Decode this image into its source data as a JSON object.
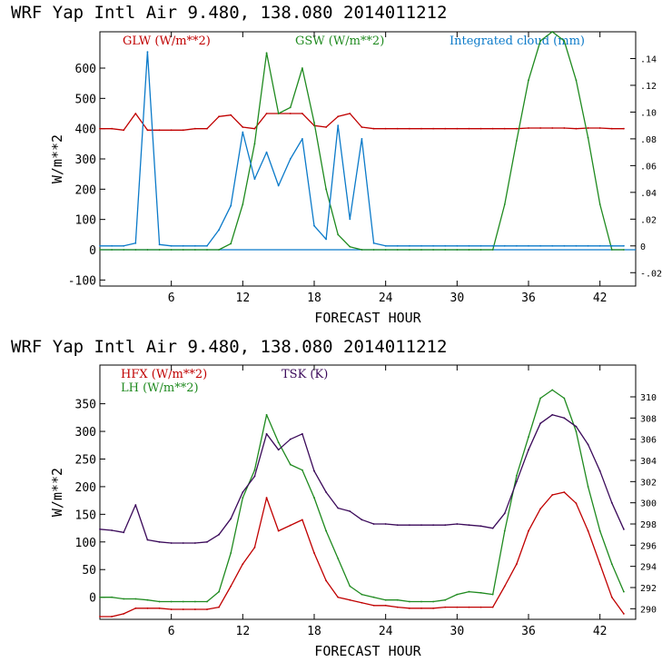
{
  "chart_data": [
    {
      "type": "line",
      "title": "WRF   Yap Intl Air   9.480, 138.080  2014011212",
      "xlabel": "FORECAST HOUR",
      "ylabel": "W/m**2",
      "xlim": [
        0,
        45
      ],
      "ylim": [
        -120,
        720
      ],
      "y2lim": [
        -0.03,
        0.16
      ],
      "x_ticks": [
        6,
        12,
        18,
        24,
        30,
        36,
        42
      ],
      "y_ticks": [
        -100,
        0,
        100,
        200,
        300,
        400,
        500,
        600
      ],
      "y_tick_labels": [
        "-100",
        "0",
        "100",
        "200",
        "300",
        "400",
        "500",
        "600"
      ],
      "y2_ticks": [
        -0.02,
        0,
        0.02,
        0.04,
        0.06,
        0.08,
        0.1,
        0.12,
        0.14
      ],
      "y2_tick_labels": [
        "-.02",
        "0",
        ".02",
        ".04",
        ".06",
        ".08",
        ".10",
        ".12",
        ".14"
      ],
      "zero_line_color": "#0b7ac9",
      "legend": [
        {
          "label": "GLW (W/m**2)",
          "color": "#c00000"
        },
        {
          "label": "GSW (W/m**2)",
          "color": "#1f8a1f"
        },
        {
          "label": "Integrated cloud (mm)",
          "color": "#0b7ac9"
        }
      ],
      "x": [
        0,
        1,
        2,
        3,
        4,
        5,
        6,
        7,
        8,
        9,
        10,
        11,
        12,
        13,
        14,
        15,
        16,
        17,
        18,
        19,
        20,
        21,
        22,
        23,
        24,
        25,
        26,
        27,
        28,
        29,
        30,
        31,
        32,
        33,
        34,
        35,
        36,
        37,
        38,
        39,
        40,
        41,
        42,
        43,
        44
      ],
      "series": [
        {
          "name": "GLW",
          "axis": "left",
          "color": "#c00000",
          "values": [
            400,
            400,
            395,
            450,
            395,
            395,
            395,
            395,
            400,
            400,
            440,
            445,
            405,
            400,
            450,
            450,
            450,
            450,
            410,
            405,
            440,
            450,
            405,
            400,
            400,
            400,
            400,
            400,
            400,
            400,
            400,
            400,
            400,
            400,
            400,
            400,
            402,
            402,
            402,
            402,
            400,
            402,
            402,
            400,
            400
          ]
        },
        {
          "name": "GSW",
          "axis": "left",
          "color": "#1f8a1f",
          "values": [
            0,
            0,
            0,
            0,
            0,
            0,
            0,
            0,
            0,
            0,
            0,
            20,
            150,
            350,
            650,
            450,
            470,
            600,
            420,
            200,
            50,
            10,
            0,
            0,
            0,
            0,
            0,
            0,
            0,
            0,
            0,
            0,
            0,
            0,
            150,
            360,
            560,
            690,
            720,
            690,
            560,
            370,
            150,
            0,
            0
          ]
        },
        {
          "name": "Integrated cloud",
          "axis": "right",
          "color": "#0b7ac9",
          "values": [
            0,
            0,
            0,
            0.002,
            0.145,
            0.001,
            0,
            0,
            0,
            0,
            0.012,
            0.03,
            0.085,
            0.05,
            0.07,
            0.045,
            0.065,
            0.08,
            0.015,
            0.005,
            0.09,
            0.02,
            0.08,
            0.002,
            0,
            0,
            0,
            0,
            0,
            0,
            0,
            0,
            0,
            0,
            0,
            0,
            0,
            0,
            0,
            0,
            0,
            0,
            0,
            0,
            0
          ]
        }
      ]
    },
    {
      "type": "line",
      "title": "WRF   Yap Intl Air   9.480, 138.080  2014011212",
      "xlabel": "FORECAST HOUR",
      "ylabel": "W/m**2",
      "xlim": [
        0,
        45
      ],
      "ylim": [
        -40,
        420
      ],
      "y2lim": [
        289,
        313
      ],
      "x_ticks": [
        6,
        12,
        18,
        24,
        30,
        36,
        42
      ],
      "y_ticks": [
        0,
        50,
        100,
        150,
        200,
        250,
        300,
        350
      ],
      "y_tick_labels": [
        "0",
        "50",
        "100",
        "150",
        "200",
        "250",
        "300",
        "350"
      ],
      "y2_ticks": [
        290,
        292,
        294,
        296,
        298,
        300,
        302,
        304,
        306,
        308,
        310
      ],
      "y2_tick_labels": [
        "290",
        "292",
        "294",
        "296",
        "298",
        "300",
        "302",
        "304",
        "306",
        "308",
        "310"
      ],
      "legend": [
        {
          "label": "HFX (W/m**2)",
          "color": "#c00000"
        },
        {
          "label": "LH  (W/m**2)",
          "color": "#1f8a1f"
        },
        {
          "label": "TSK (K)",
          "color": "#3b0a5a"
        }
      ],
      "x": [
        0,
        1,
        2,
        3,
        4,
        5,
        6,
        7,
        8,
        9,
        10,
        11,
        12,
        13,
        14,
        15,
        16,
        17,
        18,
        19,
        20,
        21,
        22,
        23,
        24,
        25,
        26,
        27,
        28,
        29,
        30,
        31,
        32,
        33,
        34,
        35,
        36,
        37,
        38,
        39,
        40,
        41,
        42,
        43,
        44
      ],
      "series": [
        {
          "name": "HFX",
          "axis": "left",
          "color": "#c00000",
          "values": [
            -35,
            -35,
            -30,
            -20,
            -20,
            -20,
            -22,
            -22,
            -22,
            -22,
            -18,
            20,
            60,
            90,
            180,
            120,
            130,
            140,
            80,
            30,
            0,
            -5,
            -10,
            -15,
            -15,
            -18,
            -20,
            -20,
            -20,
            -18,
            -18,
            -18,
            -18,
            -18,
            20,
            60,
            120,
            160,
            185,
            190,
            170,
            120,
            60,
            0,
            -30
          ]
        },
        {
          "name": "LH",
          "axis": "left",
          "color": "#1f8a1f",
          "values": [
            0,
            0,
            -3,
            -3,
            -5,
            -8,
            -8,
            -8,
            -8,
            -8,
            10,
            80,
            180,
            230,
            330,
            280,
            240,
            230,
            180,
            120,
            70,
            20,
            5,
            0,
            -5,
            -5,
            -8,
            -8,
            -8,
            -5,
            5,
            10,
            8,
            5,
            120,
            220,
            290,
            360,
            375,
            360,
            300,
            200,
            120,
            60,
            10
          ]
        },
        {
          "name": "TSK",
          "axis": "right",
          "color": "#3b0a5a",
          "values": [
            297.5,
            297.4,
            297.2,
            299.8,
            296.5,
            296.3,
            296.2,
            296.2,
            296.2,
            296.3,
            297.0,
            298.5,
            301.0,
            302.5,
            306.5,
            305.0,
            306.0,
            306.5,
            303.0,
            301.0,
            299.5,
            299.2,
            298.4,
            298.0,
            298.0,
            297.9,
            297.9,
            297.9,
            297.9,
            297.9,
            298.0,
            297.9,
            297.8,
            297.6,
            299.0,
            302.0,
            305.0,
            307.5,
            308.3,
            308.0,
            307.2,
            305.5,
            303.0,
            300.0,
            297.5
          ]
        }
      ]
    }
  ]
}
